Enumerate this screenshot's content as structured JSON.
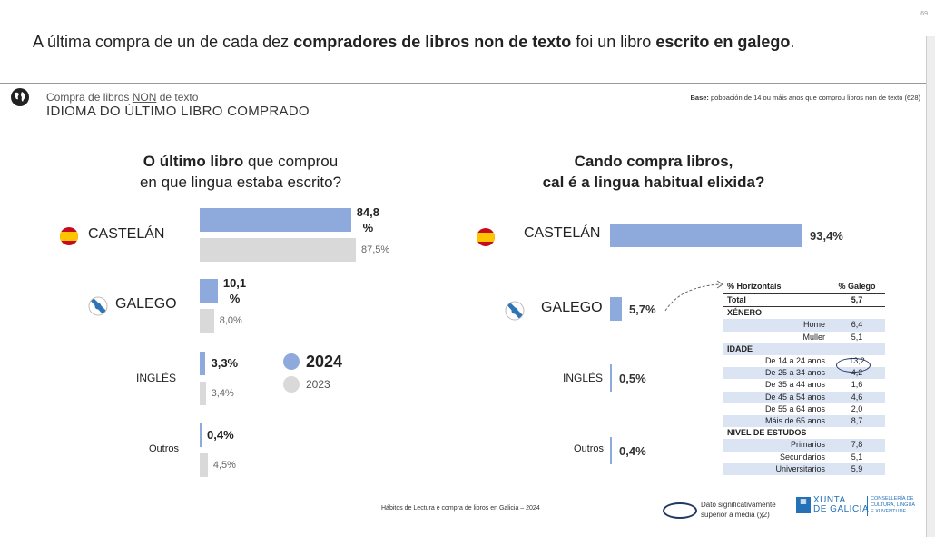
{
  "page_number": "69",
  "headline": {
    "p1": "A última compra de un de cada dez ",
    "b1": "compradores de libros non de texto",
    "p2": " foi un libro ",
    "b2": "escrito en galego",
    "p3": "."
  },
  "section": {
    "subtitle_pre": "Compra de libros ",
    "subtitle_non": "NON",
    "subtitle_post": " de texto",
    "title": "IDIOMA DO ÚLTIMO LIBRO COMPRADO"
  },
  "base": {
    "label": "Base:",
    "text": " poboación de 14 ou máis anos que comprou libros non de texto (628)"
  },
  "left": {
    "q_bold": "O último libro",
    "q_rest1": " que comprou",
    "q_line2": "en que lingua estaba escrito?",
    "legend_2024": "2024",
    "legend_2023": "2023",
    "rows": [
      {
        "label": "CASTELÁN",
        "v2024": "84,8\n%",
        "v2023": "87,5%"
      },
      {
        "label": "GALEGO",
        "v2024": "10,1\n%",
        "v2023": "8,0%"
      },
      {
        "label": "INGLÉS",
        "v2024": "3,3%",
        "v2023": "3,4%"
      },
      {
        "label": "Outros",
        "v2024": "0,4%",
        "v2023": "4,5%"
      }
    ]
  },
  "right": {
    "q_line1": "Cando compra libros,",
    "q_line2": "cal é a lingua habitual elixida?",
    "rows": [
      {
        "label": "CASTELÁN",
        "value": "93,4%"
      },
      {
        "label": "GALEGO",
        "value": "5,7%"
      },
      {
        "label": "INGLÉS",
        "value": "0,5%"
      },
      {
        "label": "Outros",
        "value": "0,4%"
      }
    ]
  },
  "table": {
    "col1": "% Horizontais",
    "col2": "% Galego",
    "rows": [
      {
        "label": "Total",
        "value": "5,7",
        "kind": "total"
      },
      {
        "label": "XÉNERO",
        "value": "",
        "kind": "group"
      },
      {
        "label": "Home",
        "value": "6,4",
        "kind": "shade"
      },
      {
        "label": "Muller",
        "value": "5,1",
        "kind": "plain"
      },
      {
        "label": "IDADE",
        "value": "",
        "kind": "groupshade"
      },
      {
        "label": "De 14 a 24 anos",
        "value": "13,2",
        "kind": "plain"
      },
      {
        "label": "De 25 a 34 anos",
        "value": "4,2",
        "kind": "shade"
      },
      {
        "label": "De 35 a 44 anos",
        "value": "1,6",
        "kind": "plain"
      },
      {
        "label": "De 45 a 54 anos",
        "value": "4,6",
        "kind": "shade"
      },
      {
        "label": "De 55 a 64 anos",
        "value": "2,0",
        "kind": "plain"
      },
      {
        "label": "Máis de 65 anos",
        "value": "8,7",
        "kind": "shade"
      },
      {
        "label": "NIVEL DE ESTUDOS",
        "value": "",
        "kind": "group"
      },
      {
        "label": "Primarios",
        "value": "7,8",
        "kind": "shade"
      },
      {
        "label": "Secundarios",
        "value": "5,1",
        "kind": "plain"
      },
      {
        "label": "Universitarios",
        "value": "5,9",
        "kind": "shade"
      }
    ]
  },
  "footer": {
    "source": "Hábitos de Lectura e compra de libros en Galicia – 2024",
    "sig_line1": "Dato significativamente",
    "sig_line2": "superior á media (χ2)",
    "xunta_1": "XUNTA",
    "xunta_2": "DE GALICIA",
    "consel_1": "CONSELLERÍA DE",
    "consel_2": "CULTURA, LINGUA",
    "consel_3": "E XUVENTUDE"
  },
  "colors": {
    "bar_2024": "#8ea9db",
    "bar_2023": "#d9d9d9",
    "table_shade": "#dbe4f3",
    "brand_blue": "#2471b8"
  },
  "chart_data": [
    {
      "type": "bar",
      "title": "O último libro que comprou en que lingua estaba escrito?",
      "categories": [
        "CASTELÁN",
        "GALEGO",
        "INGLÉS",
        "Outros"
      ],
      "series": [
        {
          "name": "2024",
          "values": [
            84.8,
            10.1,
            3.3,
            0.4
          ]
        },
        {
          "name": "2023",
          "values": [
            87.5,
            8.0,
            3.4,
            4.5
          ]
        }
      ],
      "orientation": "horizontal",
      "unit": "%"
    },
    {
      "type": "bar",
      "title": "Cando compra libros, cal é a lingua habitual elixida?",
      "categories": [
        "CASTELÁN",
        "GALEGO",
        "INGLÉS",
        "Outros"
      ],
      "values": [
        93.4,
        5.7,
        0.5,
        0.4
      ],
      "orientation": "horizontal",
      "unit": "%"
    }
  ]
}
